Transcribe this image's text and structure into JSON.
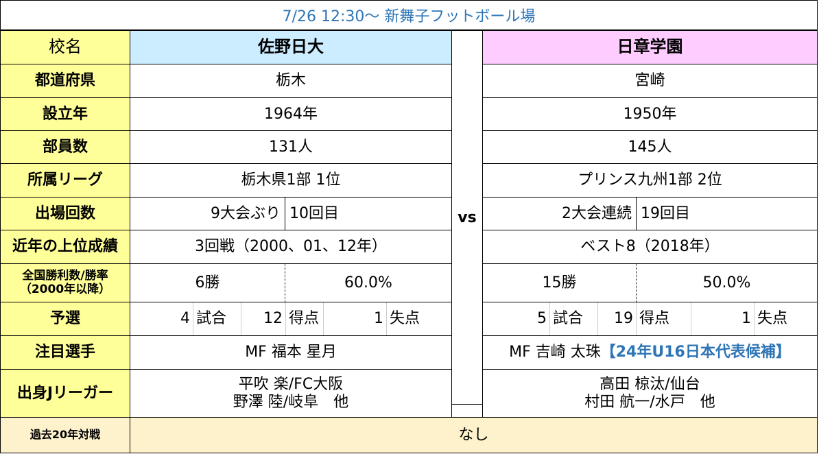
{
  "title": "7/26 12:30～ 新舞子フットボール場",
  "vs_label": "vs",
  "labels": {
    "school": "校名",
    "prefecture": "都道府県",
    "founded": "設立年",
    "members": "部員数",
    "league": "所属リーグ",
    "appearances": "出場回数",
    "recent_best": "近年の上位成績",
    "winrate_1": "全国勝利数/勝率",
    "winrate_2": "（2000年以降）",
    "prelim": "予選",
    "key_player": "注目選手",
    "jleaguers": "出身Jリーガー",
    "head_to_head": "過去20年対戦"
  },
  "team1": {
    "name": "佐野日大",
    "prefecture": "栃木",
    "founded": "1964年",
    "members": "131人",
    "league": "栃木県1部 1位",
    "appearances_a": "9大会ぶり",
    "appearances_b": "10回目",
    "recent_best": "3回戦（2000、01、12年）",
    "wins": "6勝",
    "rate": "60.0%",
    "prelim_games_num": "4",
    "prelim_games_unit": "試合",
    "prelim_goals_num": "12",
    "prelim_goals_unit": "得点",
    "prelim_conceded_num": "1",
    "prelim_conceded_unit": "失点",
    "key_player": "MF 福本 星月",
    "jleaguer_1": "平吹 楽/FC大阪",
    "jleaguer_2": "野澤 陸/岐阜　他"
  },
  "team2": {
    "name": "日章学園",
    "prefecture": "宮崎",
    "founded": "1950年",
    "members": "145人",
    "league": "プリンス九州1部 2位",
    "appearances_a": "2大会連続",
    "appearances_b": "19回目",
    "recent_best": "ベスト8（2018年）",
    "wins": "15勝",
    "rate": "50.0%",
    "prelim_games_num": "5",
    "prelim_games_unit": "試合",
    "prelim_goals_num": "19",
    "prelim_goals_unit": "得点",
    "prelim_conceded_num": "1",
    "prelim_conceded_unit": "失点",
    "key_player": "MF 吉崎 太珠",
    "key_player_note": "【24年U16日本代表候補】",
    "jleaguer_1": "高田 椋汰/仙台",
    "jleaguer_2": "村田 航一/水戸　他"
  },
  "head_to_head": "なし",
  "colors": {
    "title_text": "#2e75b6",
    "label_bg": "#ffff99",
    "team1_header_bg": "#ccecff",
    "team2_header_bg": "#ffccff",
    "last_row_bg": "#fef2cc",
    "note_text": "#2e75b6"
  }
}
